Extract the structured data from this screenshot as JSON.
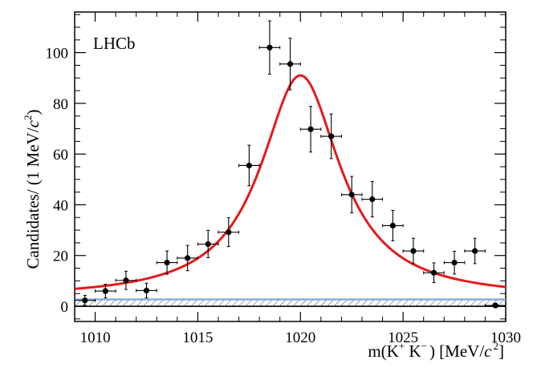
{
  "chart_data": {
    "type": "scatter",
    "title": "LHCb",
    "xlabel": {
      "base": "m(K",
      "sup1": "+",
      "mid": " K",
      "sup2": "−",
      "tail": ") [MeV/",
      "c": "c",
      "exp": "2",
      "close": "]"
    },
    "ylabel": {
      "base": "Candidates/ (1 MeV/",
      "c": "c",
      "exp": "2",
      "close": ")"
    },
    "xlim": [
      1009,
      1030
    ],
    "ylim": [
      -6,
      116
    ],
    "xticks": [
      1010,
      1015,
      1020,
      1025,
      1030
    ],
    "yticks": [
      0,
      20,
      40,
      60,
      80,
      100
    ],
    "xtick_labels": [
      "1010",
      "1015",
      "1020",
      "1025",
      "1030"
    ],
    "ytick_labels": [
      "0",
      "20",
      "40",
      "60",
      "80",
      "100"
    ],
    "points": [
      {
        "x": 1009.5,
        "y": 2.3,
        "err": 2.0
      },
      {
        "x": 1010.5,
        "y": 6.0,
        "err": 2.7
      },
      {
        "x": 1011.5,
        "y": 10.2,
        "err": 3.6
      },
      {
        "x": 1012.5,
        "y": 6.2,
        "err": 2.9
      },
      {
        "x": 1013.5,
        "y": 17.2,
        "err": 4.6
      },
      {
        "x": 1014.5,
        "y": 19.0,
        "err": 5.0
      },
      {
        "x": 1015.5,
        "y": 24.5,
        "err": 5.4
      },
      {
        "x": 1016.5,
        "y": 29.2,
        "err": 5.7
      },
      {
        "x": 1017.5,
        "y": 55.5,
        "err": 8.0
      },
      {
        "x": 1018.5,
        "y": 102.0,
        "err": 10.5
      },
      {
        "x": 1019.5,
        "y": 95.5,
        "err": 10.2
      },
      {
        "x": 1020.5,
        "y": 69.8,
        "err": 9.0
      },
      {
        "x": 1021.5,
        "y": 67.0,
        "err": 8.8
      },
      {
        "x": 1022.5,
        "y": 44.0,
        "err": 7.2
      },
      {
        "x": 1023.5,
        "y": 42.2,
        "err": 7.0
      },
      {
        "x": 1024.5,
        "y": 31.8,
        "err": 6.0
      },
      {
        "x": 1025.5,
        "y": 21.8,
        "err": 5.0
      },
      {
        "x": 1026.5,
        "y": 13.2,
        "err": 3.9
      },
      {
        "x": 1027.5,
        "y": 17.2,
        "err": 4.5
      },
      {
        "x": 1028.5,
        "y": 21.8,
        "err": 5.0
      },
      {
        "x": 1029.5,
        "y": 0.3,
        "err": 0.8
      }
    ],
    "fit": {
      "peak_x": 1020.0,
      "width": 4.7,
      "amplitude": 88.0,
      "background": 3.0,
      "color": "#e41a1c"
    },
    "background_band": {
      "y_low": 0.0,
      "y_high": 2.7,
      "line_color": "#7aa6e0"
    },
    "colors": {
      "points": "#000000",
      "fit_line": "#e41a1c",
      "background_line": "#7aa6e0",
      "hatch": "#2b4a7a",
      "axis": "#000000"
    }
  }
}
